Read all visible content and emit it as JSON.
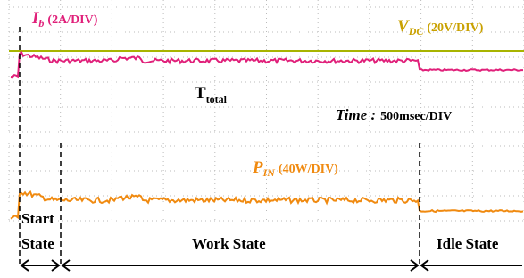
{
  "current_label": {
    "symbol": "I",
    "subscript": "b",
    "scale": "(2A/DIV)"
  },
  "voltage_label": {
    "symbol": "V",
    "subscript": "DC",
    "scale": "(20V/DIV)"
  },
  "total_time_label": {
    "symbol": "T",
    "subscript": "total"
  },
  "time_scale": {
    "label": "Time :",
    "value": "500msec/DIV"
  },
  "power_label": {
    "symbol": "P",
    "subscript": "IN",
    "scale": "(40W/DIV)"
  },
  "states": {
    "start_line1": "Start",
    "start_line2": "State",
    "work": "Work State",
    "idle": "Idle State"
  }
}
